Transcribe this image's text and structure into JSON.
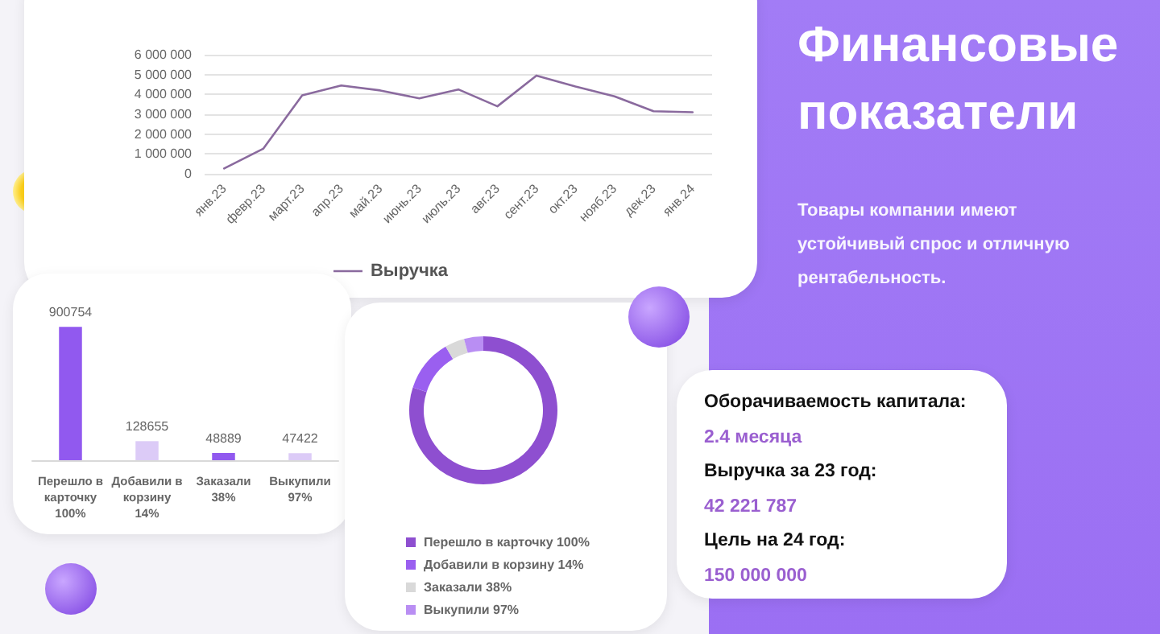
{
  "chart_data": [
    {
      "type": "line",
      "categories": [
        "янв.23",
        "февр.23",
        "март.23",
        "апр.23",
        "май.23",
        "июнь.23",
        "июль.23",
        "авг.23",
        "сент.23",
        "окт.23",
        "нояб.23",
        "дек.23",
        "янв.24"
      ],
      "series": [
        {
          "name": "Выручка",
          "color": "#8a6a9e",
          "values": [
            270000,
            1260000,
            3950000,
            4450000,
            4200000,
            3800000,
            4250000,
            3400000,
            4950000,
            4400000,
            3900000,
            3150000,
            3100000
          ]
        }
      ],
      "ylim": [
        0,
        6000000
      ],
      "yticks": [
        0,
        {
          "value": 1000000,
          "label": "1 000 000"
        },
        {
          "value": 2000000,
          "label": "2 000 000"
        },
        {
          "value": 3000000,
          "label": "3 000 000"
        },
        {
          "value": 4000000,
          "label": "4 000 000"
        },
        {
          "value": 5000000,
          "label": "5 000 000"
        },
        {
          "value": 6000000,
          "label": "6 000 000"
        }
      ],
      "grid": "y",
      "legend": "bottom",
      "marker": "none",
      "line_style": "solid"
    },
    {
      "type": "bar",
      "categories": [
        "Перешло в карточку 100%",
        "Добавили в корзину 14%",
        "Заказали 38%",
        "Выкупили 97%"
      ],
      "values": [
        900754,
        128655,
        48889,
        47422
      ],
      "colors": [
        "#9159ef",
        "#dccbf7",
        "#9159ef",
        "#dccbf7"
      ],
      "data_labels": true
    },
    {
      "type": "donut",
      "categories": [
        "Перешло в карточку 100%",
        "Добавили в корзину 14%",
        "Заказали 38%",
        "Выкупили 97%"
      ],
      "values": [
        80,
        11.5,
        4.3,
        4.2
      ],
      "colors": [
        "#8e4fd0",
        "#9a5ff0",
        "#d9d9d9",
        "#b98ef3"
      ],
      "legend": "bottom"
    },
    {
      "type": "other",
      "title": "Финансовые показатели",
      "subtitle": "Товары компании имеют устойчивый спрос и отличную рентабельность."
    },
    {
      "type": "other",
      "annotations": [
        "Оборачиваемость капитала:",
        "2.4 месяца",
        "Выручка за 23 год:",
        "42 221 787",
        "Цель на 24 год:",
        "150 000 000"
      ]
    }
  ]
}
